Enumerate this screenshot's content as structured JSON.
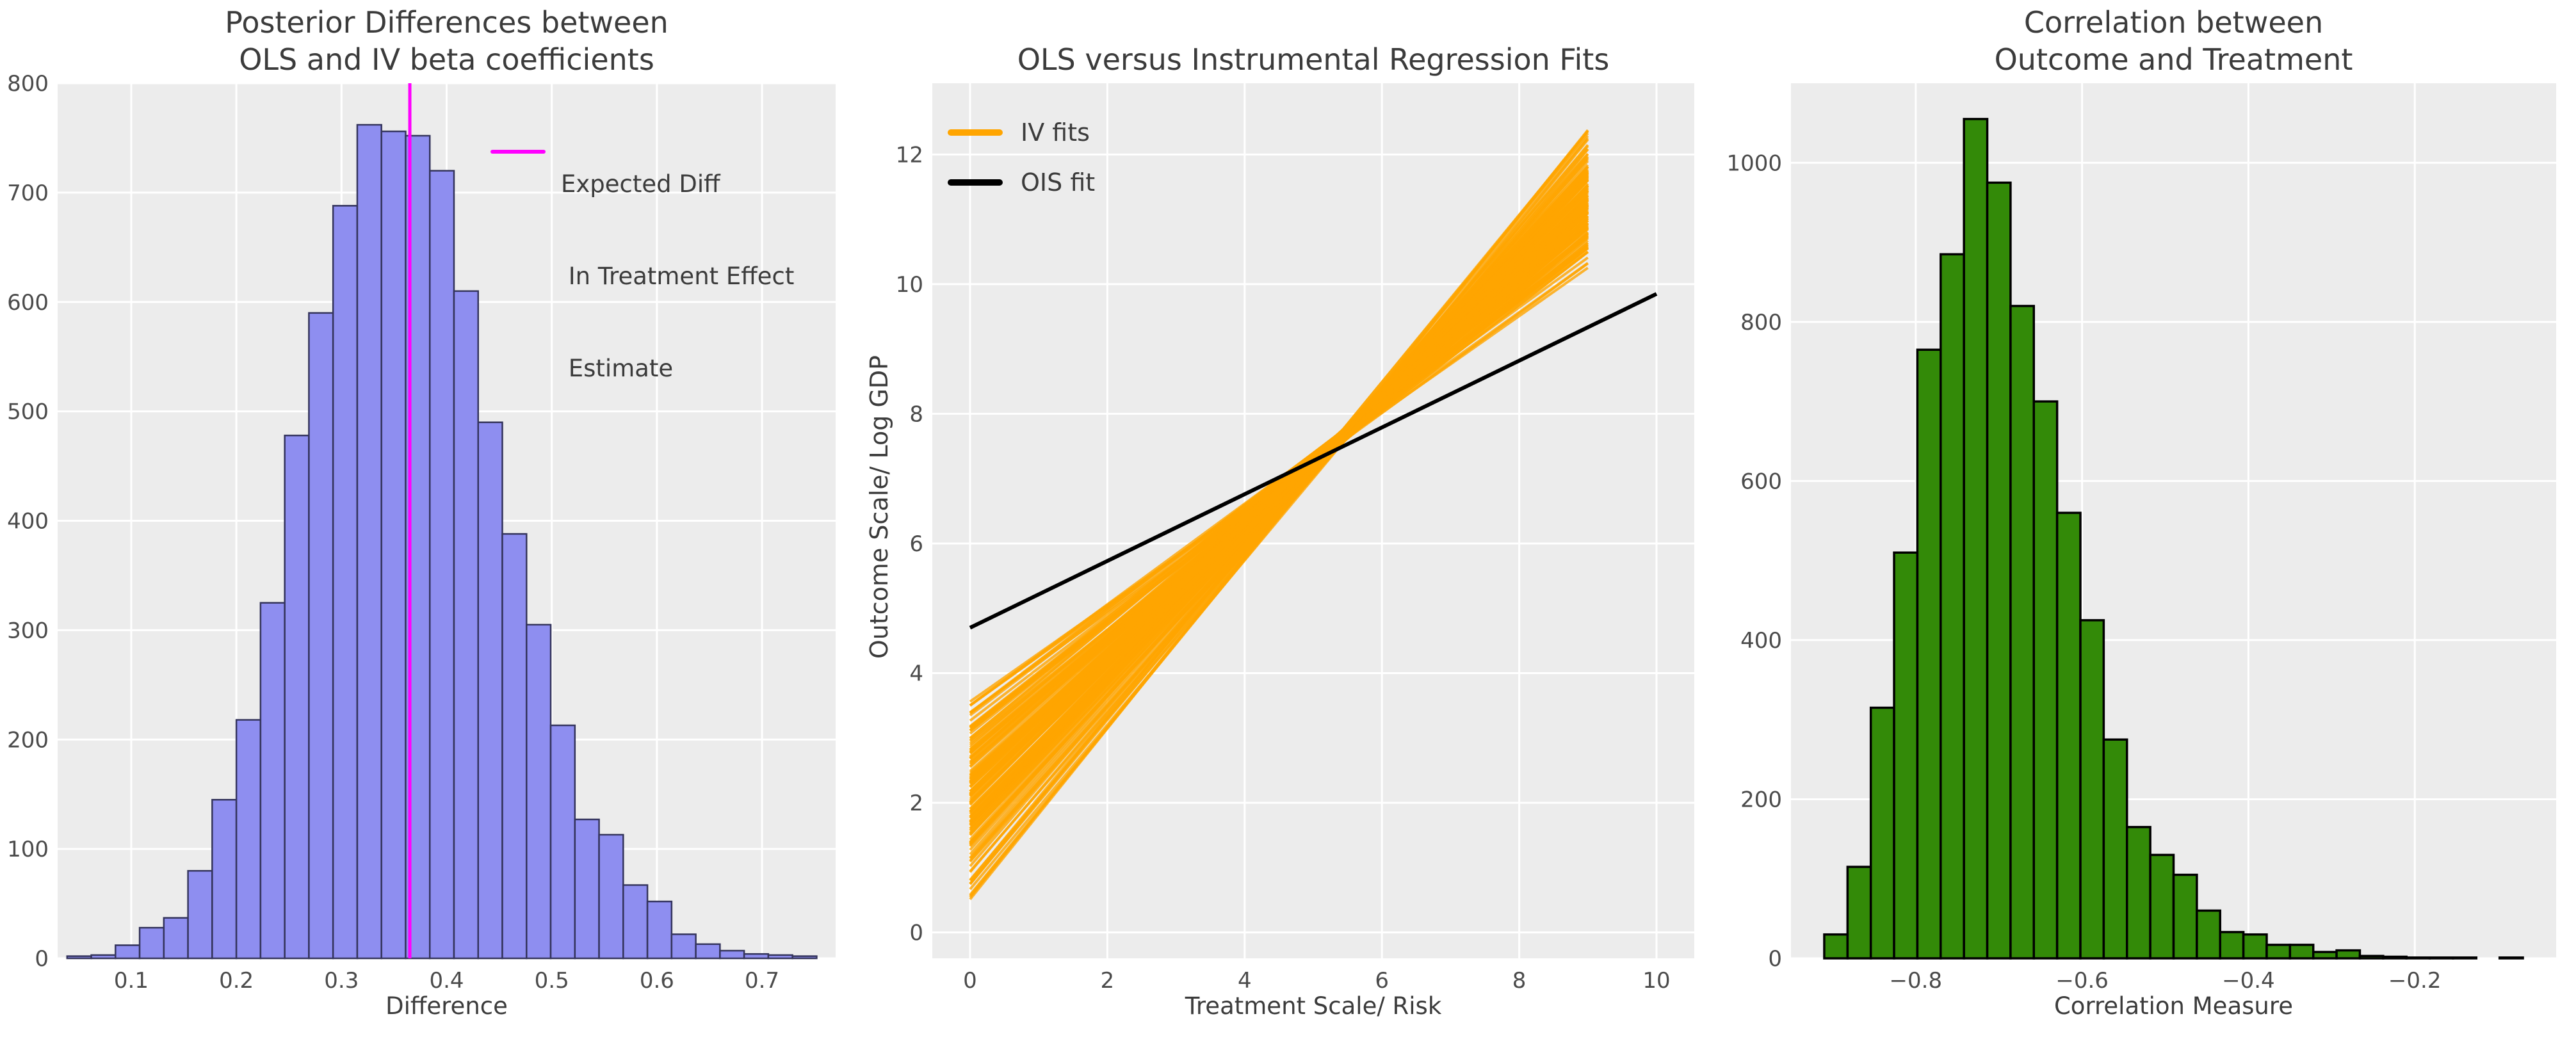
{
  "figure": {
    "background": "#ffffff",
    "panel_bg": "#ececec",
    "grid_color": "#ffffff",
    "tick_color": "#4b4b4b",
    "text_color": "#3b3b3b"
  },
  "chart_data": [
    {
      "id": "posterior-differences-histogram",
      "type": "bar",
      "title_lines": [
        "Posterior Differences between",
        " OLS and IV beta coefficients"
      ],
      "xlabel": "Difference",
      "ylabel": "",
      "xlim": [
        0.03,
        0.77
      ],
      "ylim": [
        0,
        800
      ],
      "xticks": [
        {
          "v": 0.1,
          "label": "0.1"
        },
        {
          "v": 0.2,
          "label": "0.2"
        },
        {
          "v": 0.3,
          "label": "0.3"
        },
        {
          "v": 0.4,
          "label": "0.4"
        },
        {
          "v": 0.5,
          "label": "0.5"
        },
        {
          "v": 0.6,
          "label": "0.6"
        },
        {
          "v": 0.7,
          "label": "0.7"
        }
      ],
      "yticks": [
        {
          "v": 0,
          "label": "0"
        },
        {
          "v": 100,
          "label": "100"
        },
        {
          "v": 200,
          "label": "200"
        },
        {
          "v": 300,
          "label": "300"
        },
        {
          "v": 400,
          "label": "400"
        },
        {
          "v": 500,
          "label": "500"
        },
        {
          "v": 600,
          "label": "600"
        },
        {
          "v": 700,
          "label": "700"
        },
        {
          "v": 800,
          "label": "800"
        }
      ],
      "bin_start": 0.039,
      "bin_width": 0.023,
      "values": [
        2,
        3,
        12,
        28,
        37,
        80,
        145,
        218,
        325,
        478,
        590,
        688,
        762,
        756,
        752,
        720,
        610,
        490,
        388,
        305,
        213,
        127,
        113,
        67,
        52,
        22,
        13,
        7,
        4,
        3,
        2
      ],
      "bar_color": "#8e8ef0",
      "bar_edge_color": "#34345c",
      "bar_edge_width": 2.5,
      "vline": {
        "x": 0.365,
        "color": "#ff00ff"
      },
      "legend": {
        "line_color": "#ff00ff",
        "label_lines": [
          "Expected Diff",
          " In Treatment Effect",
          " Estimate"
        ]
      }
    },
    {
      "id": "ols-vs-iv-regression-fits",
      "type": "line",
      "title_lines": [
        "OLS versus Instrumental Regression Fits"
      ],
      "xlabel": "Treatment Scale/ Risk",
      "ylabel": "Outcome Scale/ Log GDP",
      "xlim": [
        -0.55,
        10.55
      ],
      "ylim": [
        -0.4,
        13.1
      ],
      "xticks": [
        {
          "v": 0,
          "label": "0"
        },
        {
          "v": 2,
          "label": "2"
        },
        {
          "v": 4,
          "label": "4"
        },
        {
          "v": 6,
          "label": "6"
        },
        {
          "v": 8,
          "label": "8"
        },
        {
          "v": 10,
          "label": "10"
        }
      ],
      "yticks": [
        {
          "v": 0,
          "label": "0"
        },
        {
          "v": 2,
          "label": "2"
        },
        {
          "v": 4,
          "label": "4"
        },
        {
          "v": 6,
          "label": "6"
        },
        {
          "v": 8,
          "label": "8"
        },
        {
          "v": 10,
          "label": "10"
        },
        {
          "v": 12,
          "label": "12"
        }
      ],
      "iv_fits": {
        "label": "IV fits",
        "color": "#ffa500",
        "n_lines": 150,
        "x_start": 0,
        "x_end": 9,
        "intercept_range": [
          0.35,
          3.95
        ],
        "end_range": [
          10.1,
          12.45
        ],
        "opacity": 0.8,
        "line_width": 4
      },
      "ols_fit": {
        "label": "OIS fit",
        "color": "#000000",
        "x": [
          0,
          10
        ],
        "y": [
          4.7,
          9.85
        ],
        "line_width": 6
      }
    },
    {
      "id": "correlation-histogram",
      "type": "bar",
      "title_lines": [
        "Correlation between",
        " Outcome and Treatment"
      ],
      "xlabel": "Correlation Measure",
      "ylabel": "",
      "xlim": [
        -0.95,
        -0.03
      ],
      "ylim": [
        0,
        1100
      ],
      "xticks": [
        {
          "v": -0.8,
          "label": "−0.8"
        },
        {
          "v": -0.6,
          "label": "−0.6"
        },
        {
          "v": -0.4,
          "label": "−0.4"
        },
        {
          "v": -0.2,
          "label": "−0.2"
        }
      ],
      "yticks": [
        {
          "v": 0,
          "label": "0"
        },
        {
          "v": 200,
          "label": "200"
        },
        {
          "v": 400,
          "label": "400"
        },
        {
          "v": 600,
          "label": "600"
        },
        {
          "v": 800,
          "label": "800"
        },
        {
          "v": 1000,
          "label": "1000"
        }
      ],
      "bin_start": -0.91,
      "bin_width": 0.028,
      "values": [
        30,
        115,
        315,
        510,
        765,
        885,
        1055,
        975,
        820,
        700,
        560,
        425,
        275,
        165,
        130,
        105,
        60,
        33,
        30,
        17,
        17,
        8,
        10,
        3,
        2,
        1,
        1,
        1,
        0,
        1
      ],
      "bar_color": "#338a08",
      "bar_edge_color": "#000000",
      "bar_edge_width": 3.5
    }
  ]
}
